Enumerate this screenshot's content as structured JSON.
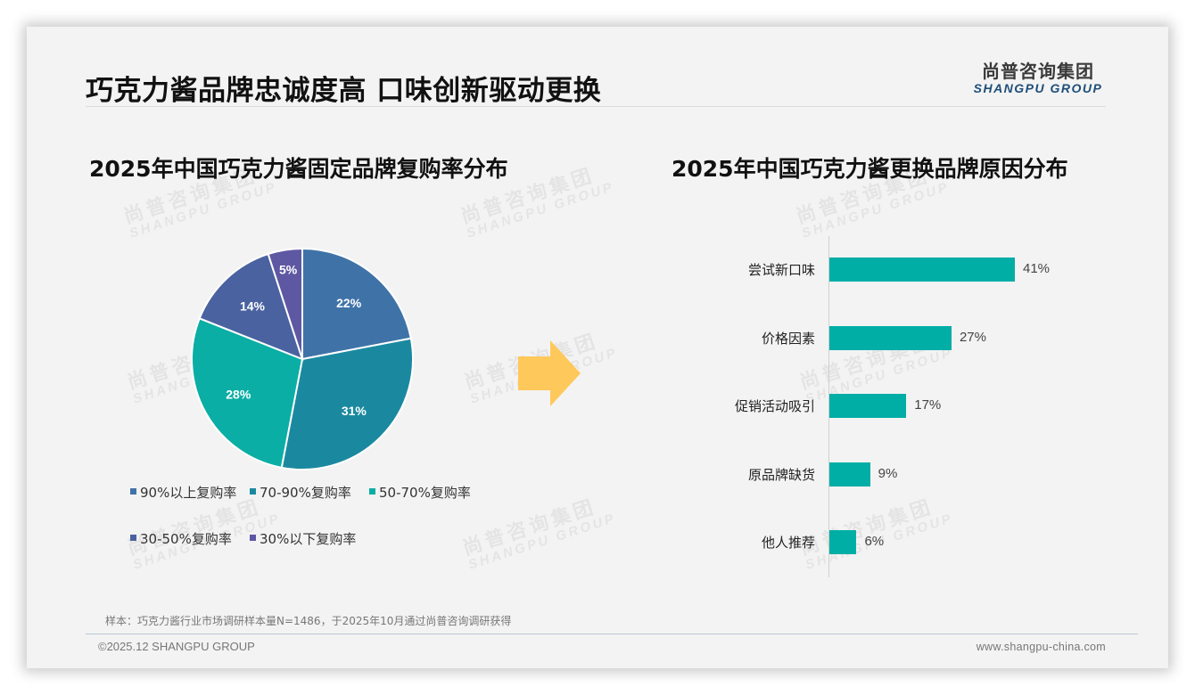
{
  "slide": {
    "title": "巧克力酱品牌忠诚度高 口味创新驱动更换",
    "logo": {
      "cn": "尚普咨询集团",
      "en": "SHANGPU GROUP"
    },
    "watermark": {
      "cn": "尚普咨询集团",
      "en": "SHANGPU GROUP"
    },
    "note": "样本：巧克力酱行业市场调研样本量N=1486，于2025年10月通过尚普咨询调研获得",
    "copyright": "©2025.12 SHANGPU GROUP",
    "website": "www.shangpu-china.com",
    "arrow_icon": "right-arrow-icon",
    "colors": {
      "arrow": "#ffc85a",
      "bar": "#00aea6",
      "logo_en": "#1f4e79"
    }
  },
  "chart_data": [
    {
      "type": "pie",
      "title": "2025年中国巧克力酱固定品牌复购率分布",
      "categories": [
        "90%以上复购率",
        "70-90%复购率",
        "50-70%复购率",
        "30-50%复购率",
        "30%以下复购率"
      ],
      "values": [
        22,
        31,
        28,
        14,
        5
      ],
      "labels": [
        "22%",
        "31%",
        "28%",
        "14%",
        "5%"
      ],
      "colors": [
        "#3f73a8",
        "#1a89a0",
        "#0aaea5",
        "#4a62a0",
        "#5e58a3"
      ],
      "legend_position": "bottom",
      "start_angle": "12 o'clock, clockwise"
    },
    {
      "type": "bar",
      "orientation": "horizontal",
      "title": "2025年中国巧克力酱更换品牌原因分布",
      "categories": [
        "尝试新口味",
        "价格因素",
        "促销活动吸引",
        "原品牌缺货",
        "他人推荐"
      ],
      "values": [
        41,
        27,
        17,
        9,
        6
      ],
      "labels": [
        "41%",
        "27%",
        "17%",
        "9%",
        "6%"
      ],
      "color": "#00aea6",
      "xlabel": "",
      "ylabel": "",
      "grid": false,
      "xlim": [
        0,
        45
      ]
    }
  ]
}
